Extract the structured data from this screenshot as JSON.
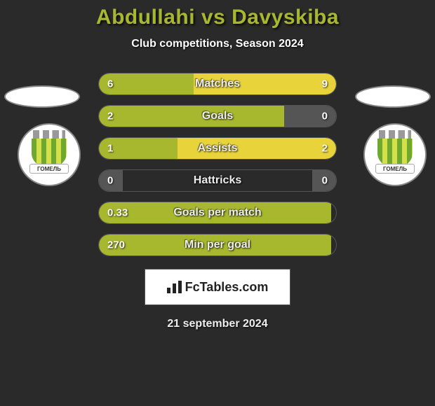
{
  "header": {
    "title": "Abdullahi vs Davyskiba",
    "subtitle": "Club competitions, Season 2024"
  },
  "players": {
    "left": {
      "badge_text": "ГОМЕЛЬ"
    },
    "right": {
      "badge_text": "ГОМЕЛЬ"
    }
  },
  "colors": {
    "accent": "#a8b82e",
    "left_bar": "#a8b82e",
    "right_bar_active": "#e8d43a",
    "right_bar_muted": "#555555",
    "background": "#2a2a2a"
  },
  "stats": [
    {
      "label": "Matches",
      "left_value": "6",
      "right_value": "9",
      "left_pct": 40,
      "right_pct": 60,
      "left_color": "#a8b82e",
      "right_color": "#e8d43a"
    },
    {
      "label": "Goals",
      "left_value": "2",
      "right_value": "0",
      "left_pct": 78,
      "right_pct": 22,
      "left_color": "#a8b82e",
      "right_color": "#555555"
    },
    {
      "label": "Assists",
      "left_value": "1",
      "right_value": "2",
      "left_pct": 33,
      "right_pct": 67,
      "left_color": "#a8b82e",
      "right_color": "#e8d43a"
    },
    {
      "label": "Hattricks",
      "left_value": "0",
      "right_value": "0",
      "left_pct": 10,
      "right_pct": 10,
      "left_color": "#555555",
      "right_color": "#555555"
    },
    {
      "label": "Goals per match",
      "left_value": "0.33",
      "right_value": "",
      "left_pct": 98,
      "right_pct": 0,
      "left_color": "#a8b82e",
      "right_color": "transparent"
    },
    {
      "label": "Min per goal",
      "left_value": "270",
      "right_value": "",
      "left_pct": 98,
      "right_pct": 0,
      "left_color": "#a8b82e",
      "right_color": "transparent"
    }
  ],
  "footer": {
    "brand": "FcTables.com",
    "date": "21 september 2024"
  }
}
